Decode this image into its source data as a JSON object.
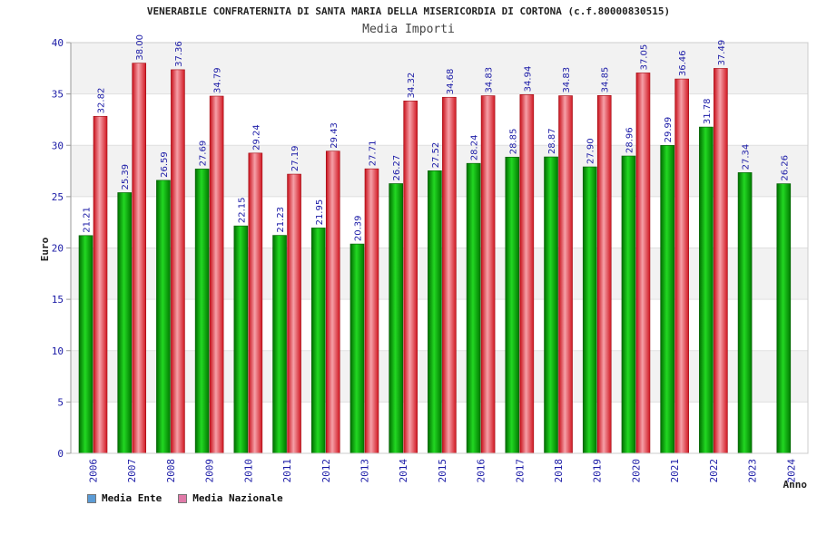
{
  "chart_data": {
    "type": "bar",
    "title": "VENERABILE CONFRATERNITA DI SANTA MARIA DELLA MISERICORDIA DI CORTONA (c.f.80000830515)",
    "subtitle": "Media Importi",
    "xlabel": "Anno",
    "ylabel": "Euro",
    "ylim": [
      0,
      40
    ],
    "yticks": [
      0,
      5,
      10,
      15,
      20,
      25,
      30,
      35,
      40
    ],
    "categories": [
      "2006",
      "2007",
      "2008",
      "2009",
      "2010",
      "2011",
      "2012",
      "2013",
      "2014",
      "2015",
      "2016",
      "2017",
      "2018",
      "2019",
      "2020",
      "2021",
      "2022",
      "2023",
      "2024"
    ],
    "series": [
      {
        "name": "Media Ente",
        "color": "#00b000",
        "values": [
          21.21,
          25.39,
          26.59,
          27.69,
          22.15,
          21.23,
          21.95,
          20.39,
          26.27,
          27.52,
          28.24,
          28.85,
          28.87,
          27.9,
          28.96,
          29.99,
          31.78,
          27.34,
          26.26
        ],
        "labels": [
          "21.21",
          "25.39",
          "26.59",
          "27.69",
          "22.15",
          "21.23",
          "21.95",
          "20.39",
          "26.27",
          "27.52",
          "28.24",
          "28.85",
          "28.87",
          "27.90",
          "28.96",
          "29.99",
          "31.78",
          "27.34",
          "26.26"
        ]
      },
      {
        "name": "Media Nazionale",
        "color": "#e8202a",
        "values": [
          32.82,
          38.0,
          37.36,
          34.79,
          29.24,
          27.19,
          29.43,
          27.71,
          34.32,
          34.68,
          34.83,
          34.94,
          34.83,
          34.85,
          37.05,
          36.46,
          37.49,
          null,
          null
        ],
        "labels": [
          "32.82",
          "38.00",
          "37.36",
          "34.79",
          "29.24",
          "27.19",
          "29.43",
          "27.71",
          "34.32",
          "34.68",
          "34.83",
          "34.94",
          "34.83",
          "34.85",
          "37.05",
          "36.46",
          "37.49",
          "",
          ""
        ]
      }
    ],
    "legend": [
      {
        "label": "Media Ente",
        "color": "#5b9bd5"
      },
      {
        "label": "Media Nazionale",
        "color": "#e07aa8"
      }
    ],
    "grid": true,
    "legend_position": "bottom-left"
  }
}
